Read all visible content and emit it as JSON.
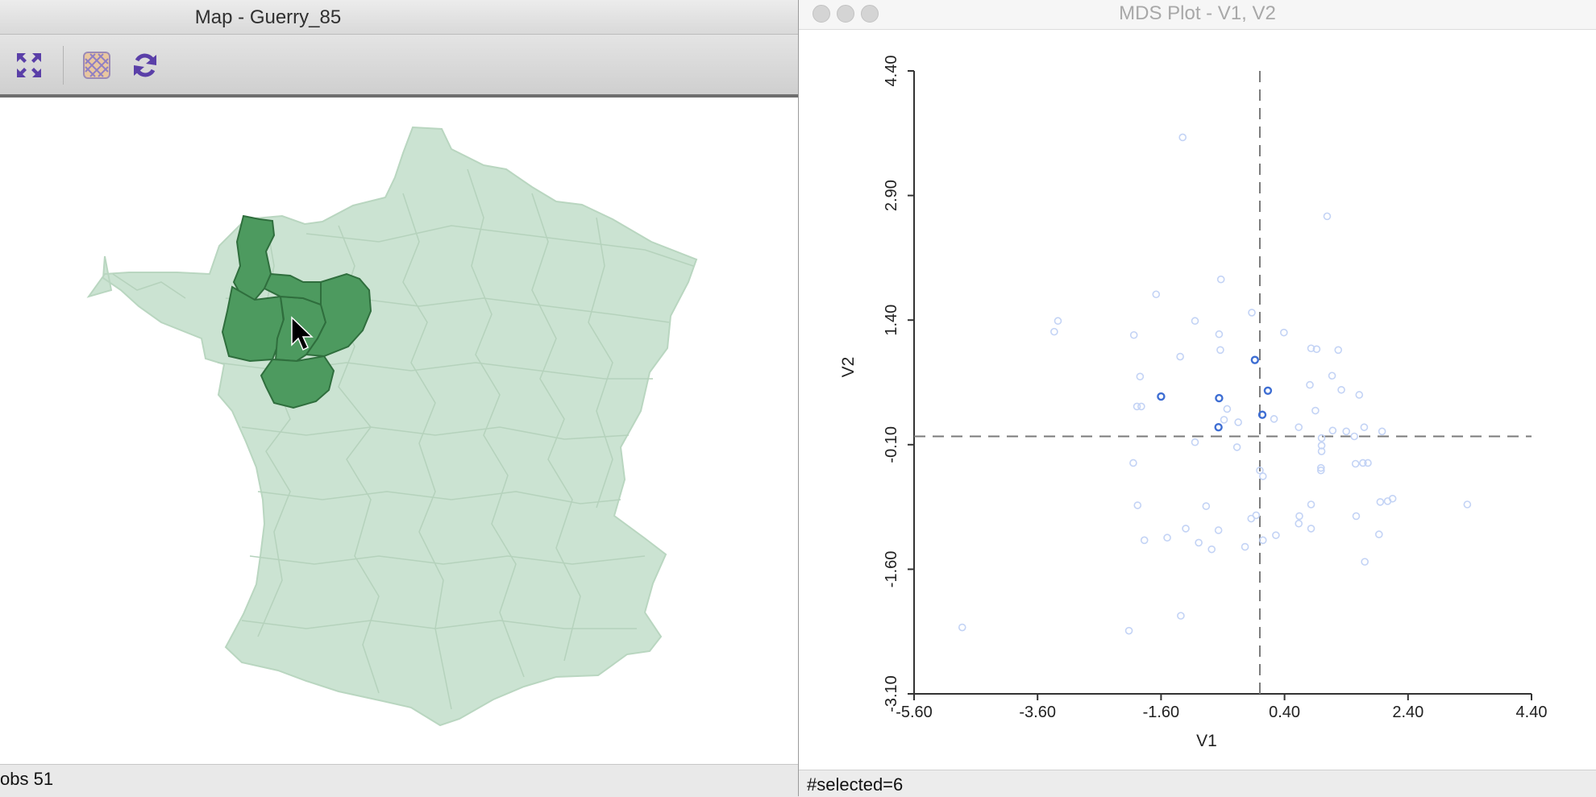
{
  "map_window": {
    "title": "Map - Guerry_85",
    "toolbar": {
      "zoom_icon": "expand-arrows-icon",
      "select_icon": "map-select-icon",
      "refresh_icon": "refresh-icon"
    },
    "status": "obs 51"
  },
  "mds_window": {
    "title": "MDS Plot - V1, V2",
    "status": "#selected=6"
  },
  "colors": {
    "selected_fill": "#4d9a5f",
    "selected_stroke": "#2f6e3d",
    "unselected_fill": "#cbe3d2",
    "unselected_stroke": "#b9d6c0",
    "point_selected": "#3e6ed3",
    "point_unselected": "#c3d3f5"
  },
  "chart_data": {
    "type": "scatter",
    "xlabel": "V1",
    "ylabel": "V2",
    "xlim": [
      -5.6,
      4.4
    ],
    "ylim": [
      -3.1,
      4.4
    ],
    "x_ticks": [
      "-5.60",
      "-3.60",
      "-1.60",
      "0.40",
      "2.40",
      "4.40"
    ],
    "y_ticks": [
      "-3.10",
      "-1.60",
      "-0.10",
      "1.40",
      "2.90",
      "4.40"
    ],
    "reference_lines": {
      "x": 0,
      "y": 0
    },
    "selected_points": [
      [
        -1.6,
        0.48
      ],
      [
        -0.66,
        0.46
      ],
      [
        -0.08,
        0.92
      ],
      [
        0.13,
        0.55
      ],
      [
        0.04,
        0.26
      ],
      [
        -0.67,
        0.11
      ]
    ],
    "points": [
      [
        -1.25,
        3.6
      ],
      [
        1.09,
        2.65
      ],
      [
        -0.63,
        1.89
      ],
      [
        -1.68,
        1.71
      ],
      [
        -0.13,
        1.49
      ],
      [
        -3.27,
        1.39
      ],
      [
        -3.33,
        1.26
      ],
      [
        -1.05,
        1.39
      ],
      [
        -2.04,
        1.22
      ],
      [
        -0.66,
        1.23
      ],
      [
        0.39,
        1.25
      ],
      [
        0.83,
        1.06
      ],
      [
        0.92,
        1.05
      ],
      [
        1.27,
        1.04
      ],
      [
        -0.64,
        1.04
      ],
      [
        -1.29,
        0.96
      ],
      [
        -1.94,
        0.72
      ],
      [
        1.17,
        0.73
      ],
      [
        0.81,
        0.62
      ],
      [
        1.32,
        0.56
      ],
      [
        1.61,
        0.5
      ],
      [
        -0.53,
        0.33
      ],
      [
        0.9,
        0.31
      ],
      [
        -0.58,
        0.2
      ],
      [
        -0.35,
        0.17
      ],
      [
        0.23,
        0.21
      ],
      [
        0.63,
        0.11
      ],
      [
        1.18,
        0.07
      ],
      [
        1.4,
        0.06
      ],
      [
        1.98,
        0.06
      ],
      [
        1.69,
        0.11
      ],
      [
        1.53,
        0.0
      ],
      [
        1.0,
        -0.02
      ],
      [
        -1.05,
        -0.07
      ],
      [
        -0.37,
        -0.13
      ],
      [
        1.0,
        -0.11
      ],
      [
        1.0,
        -0.18
      ],
      [
        1.67,
        -0.32
      ],
      [
        1.55,
        -0.33
      ],
      [
        1.75,
        -0.32
      ],
      [
        0.99,
        -0.38
      ],
      [
        0.99,
        -0.41
      ],
      [
        -2.05,
        -0.32
      ],
      [
        -1.99,
        0.36
      ],
      [
        -1.92,
        0.36
      ],
      [
        0.0,
        -0.41
      ],
      [
        0.05,
        -0.48
      ],
      [
        2.15,
        -0.75
      ],
      [
        2.07,
        -0.78
      ],
      [
        1.95,
        -0.79
      ],
      [
        3.36,
        -0.82
      ],
      [
        0.83,
        -0.82
      ],
      [
        1.56,
        -0.96
      ],
      [
        -0.87,
        -0.84
      ],
      [
        -1.98,
        -0.83
      ],
      [
        0.64,
        -0.96
      ],
      [
        0.63,
        -1.05
      ],
      [
        -0.14,
        -0.99
      ],
      [
        -0.06,
        -0.95
      ],
      [
        -0.67,
        -1.13
      ],
      [
        -1.2,
        -1.11
      ],
      [
        -1.5,
        -1.22
      ],
      [
        0.05,
        -1.25
      ],
      [
        0.26,
        -1.19
      ],
      [
        0.83,
        -1.11
      ],
      [
        1.93,
        -1.18
      ],
      [
        -0.99,
        -1.28
      ],
      [
        -1.87,
        -1.25
      ],
      [
        -0.78,
        -1.36
      ],
      [
        -0.24,
        -1.33
      ],
      [
        1.7,
        -1.51
      ],
      [
        -4.82,
        -2.3
      ],
      [
        -2.12,
        -2.34
      ],
      [
        -1.28,
        -2.16
      ]
    ]
  }
}
